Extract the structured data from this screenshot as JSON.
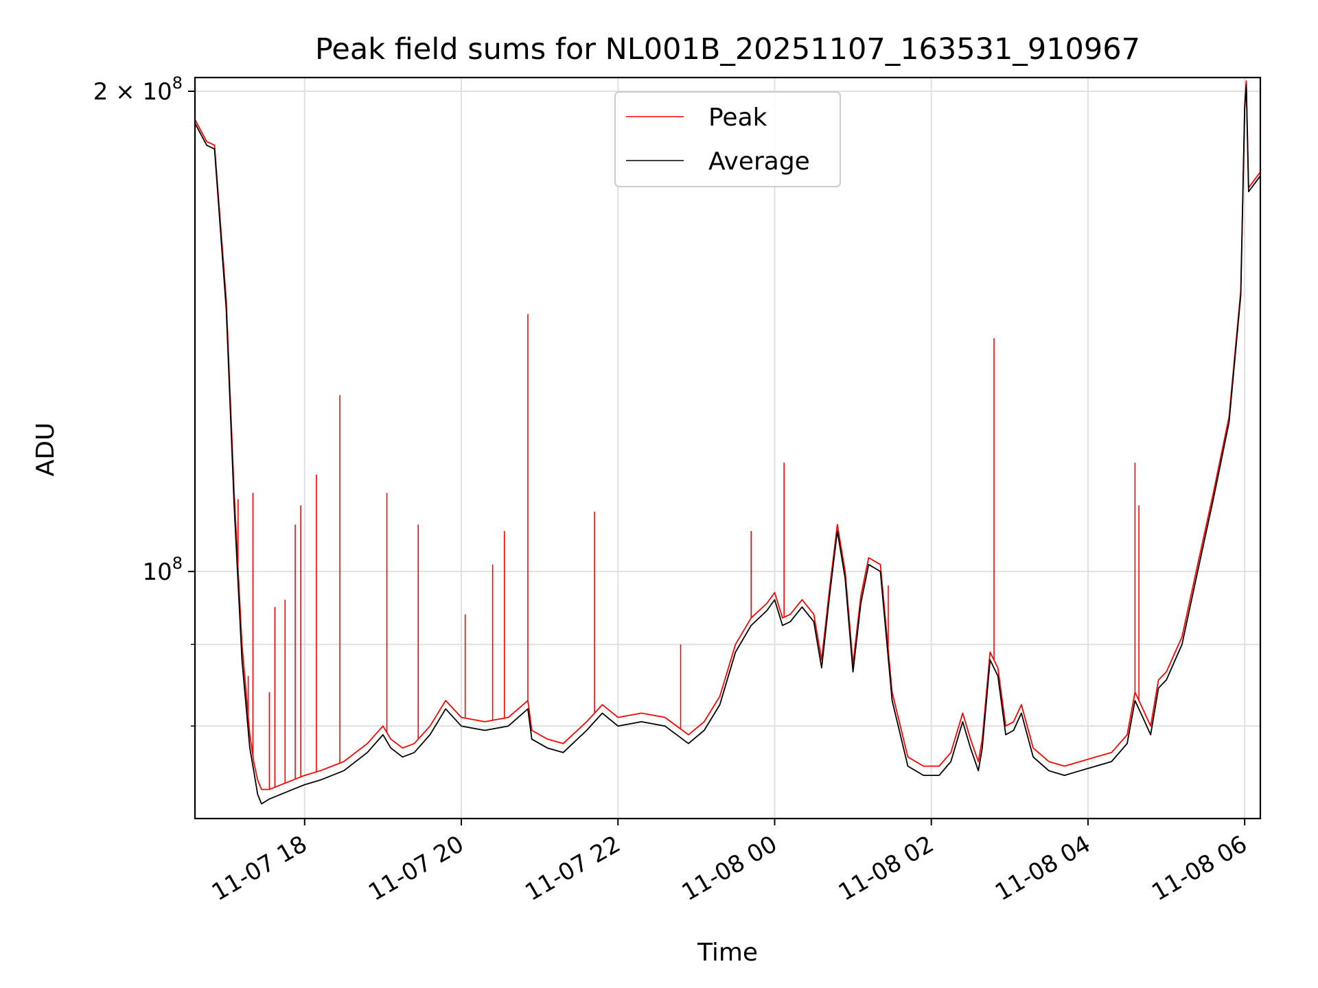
{
  "chart_data": {
    "type": "line",
    "title": "Peak field sums for NL001B_20251107_163531_910967",
    "xlabel": "Time",
    "ylabel": "ADU",
    "yscale": "log",
    "ylim": [
      70000000,
      204000000
    ],
    "xlim_hours": [
      16.6,
      30.2
    ],
    "grid": true,
    "legend_position": "upper center",
    "colors": {
      "Peak": "#ff0000",
      "Average": "#000000",
      "grid": "#e0e0e0"
    },
    "x_ticks": [
      {
        "hour": 18,
        "label": "11-07 18"
      },
      {
        "hour": 20,
        "label": "11-07 20"
      },
      {
        "hour": 22,
        "label": "11-07 22"
      },
      {
        "hour": 24,
        "label": "11-08 00"
      },
      {
        "hour": 26,
        "label": "11-08 02"
      },
      {
        "hour": 28,
        "label": "11-08 04"
      },
      {
        "hour": 30,
        "label": "11-08 06"
      }
    ],
    "y_ticks": [
      {
        "value": 100000000,
        "base": "10",
        "exp": "8"
      },
      {
        "value": 200000000,
        "base": "2 × 10",
        "exp": "8"
      }
    ],
    "y_minor_ticks": [
      80000000,
      90000000
    ],
    "series": [
      {
        "name": "Peak",
        "x_hours": [
          16.6,
          16.75,
          16.85,
          17.0,
          17.1,
          17.2,
          17.3,
          17.35,
          17.4,
          17.45,
          17.55,
          17.7,
          17.85,
          18.0,
          18.2,
          18.5,
          18.8,
          19.0,
          19.1,
          19.25,
          19.4,
          19.6,
          19.8,
          20.0,
          20.3,
          20.6,
          20.85,
          20.9,
          21.1,
          21.3,
          21.6,
          21.8,
          22.0,
          22.3,
          22.6,
          22.9,
          23.1,
          23.3,
          23.5,
          23.7,
          23.9,
          24.0,
          24.1,
          24.2,
          24.35,
          24.5,
          24.6,
          24.7,
          24.8,
          24.9,
          25.0,
          25.1,
          25.2,
          25.35,
          25.5,
          25.7,
          25.9,
          26.1,
          26.25,
          26.4,
          26.5,
          26.6,
          26.65,
          26.75,
          26.85,
          26.95,
          27.05,
          27.15,
          27.3,
          27.5,
          27.7,
          27.9,
          28.1,
          28.3,
          28.5,
          28.6,
          28.7,
          28.8,
          28.9,
          29.0,
          29.2,
          29.4,
          29.6,
          29.8,
          29.95,
          30.0,
          30.02,
          30.05,
          30.2
        ],
        "values": [
          192000000,
          186000000,
          185000000,
          148000000,
          112000000,
          90000000,
          79000000,
          76000000,
          74000000,
          73000000,
          73000000,
          73500000,
          74000000,
          74500000,
          75000000,
          76000000,
          78000000,
          80000000,
          78500000,
          77500000,
          78000000,
          80000000,
          83000000,
          81000000,
          80500000,
          81000000,
          83000000,
          79500000,
          78500000,
          78000000,
          80500000,
          82500000,
          81000000,
          81500000,
          81000000,
          79000000,
          80500000,
          83500000,
          90000000,
          93500000,
          95500000,
          97000000,
          93500000,
          94000000,
          96000000,
          94000000,
          88000000,
          97500000,
          107000000,
          100000000,
          87500000,
          96500000,
          102000000,
          101000000,
          84000000,
          76500000,
          75500000,
          75500000,
          77000000,
          81500000,
          78500000,
          76000000,
          78500000,
          89000000,
          87000000,
          80000000,
          80500000,
          82500000,
          77500000,
          76000000,
          75500000,
          76000000,
          76500000,
          77000000,
          79000000,
          84000000,
          82000000,
          80000000,
          85500000,
          86500000,
          91000000,
          101000000,
          112000000,
          125000000,
          150000000,
          196000000,
          203000000,
          174000000,
          178000000
        ]
      },
      {
        "name": "Average",
        "x_hours": [
          16.6,
          16.75,
          16.85,
          17.0,
          17.1,
          17.2,
          17.3,
          17.35,
          17.4,
          17.45,
          17.55,
          17.7,
          17.85,
          18.0,
          18.2,
          18.5,
          18.8,
          19.0,
          19.1,
          19.25,
          19.4,
          19.6,
          19.8,
          20.0,
          20.3,
          20.6,
          20.85,
          20.9,
          21.1,
          21.3,
          21.6,
          21.8,
          22.0,
          22.3,
          22.6,
          22.9,
          23.1,
          23.3,
          23.5,
          23.7,
          23.9,
          24.0,
          24.1,
          24.2,
          24.35,
          24.5,
          24.6,
          24.7,
          24.8,
          24.9,
          25.0,
          25.1,
          25.2,
          25.35,
          25.5,
          25.7,
          25.9,
          26.1,
          26.25,
          26.4,
          26.5,
          26.6,
          26.65,
          26.75,
          26.85,
          26.95,
          27.05,
          27.15,
          27.3,
          27.5,
          27.7,
          27.9,
          28.1,
          28.3,
          28.5,
          28.6,
          28.7,
          28.8,
          28.9,
          29.0,
          29.2,
          29.4,
          29.6,
          29.8,
          29.95,
          30.0,
          30.02,
          30.05,
          30.2
        ],
        "values": [
          191000000,
          185000000,
          184000000,
          146000000,
          110000000,
          88000000,
          77500000,
          75000000,
          72500000,
          71500000,
          72000000,
          72500000,
          73000000,
          73500000,
          74000000,
          75000000,
          77000000,
          79000000,
          77500000,
          76500000,
          77000000,
          79000000,
          82000000,
          80000000,
          79500000,
          80000000,
          82000000,
          78500000,
          77500000,
          77000000,
          79500000,
          81500000,
          80000000,
          80500000,
          80000000,
          78000000,
          79500000,
          82500000,
          89000000,
          92500000,
          94500000,
          96000000,
          92500000,
          93000000,
          95000000,
          93000000,
          87000000,
          96500000,
          106000000,
          99000000,
          86500000,
          95500000,
          101000000,
          100000000,
          83000000,
          75500000,
          74500000,
          74500000,
          76000000,
          80500000,
          77500000,
          75000000,
          77500000,
          88000000,
          86000000,
          79000000,
          79500000,
          81500000,
          76500000,
          75000000,
          74500000,
          75000000,
          75500000,
          76000000,
          78000000,
          83000000,
          81000000,
          79000000,
          84500000,
          85500000,
          90000000,
          100000000,
          111000000,
          124000000,
          149000000,
          195000000,
          202000000,
          173000000,
          177000000
        ]
      }
    ],
    "peak_spikes": [
      {
        "hour": 17.15,
        "value": 111000000
      },
      {
        "hour": 17.28,
        "value": 86000000
      },
      {
        "hour": 17.34,
        "value": 112000000
      },
      {
        "hour": 17.55,
        "value": 84000000
      },
      {
        "hour": 17.62,
        "value": 95000000
      },
      {
        "hour": 17.75,
        "value": 96000000
      },
      {
        "hour": 17.88,
        "value": 107000000
      },
      {
        "hour": 17.95,
        "value": 110000000
      },
      {
        "hour": 18.15,
        "value": 115000000
      },
      {
        "hour": 18.45,
        "value": 129000000
      },
      {
        "hour": 19.05,
        "value": 112000000
      },
      {
        "hour": 19.45,
        "value": 107000000
      },
      {
        "hour": 20.05,
        "value": 94000000
      },
      {
        "hour": 20.4,
        "value": 101000000
      },
      {
        "hour": 20.55,
        "value": 106000000
      },
      {
        "hour": 20.85,
        "value": 145000000
      },
      {
        "hour": 21.7,
        "value": 109000000
      },
      {
        "hour": 22.8,
        "value": 90000000
      },
      {
        "hour": 23.7,
        "value": 106000000
      },
      {
        "hour": 24.12,
        "value": 117000000
      },
      {
        "hour": 25.45,
        "value": 98000000
      },
      {
        "hour": 26.8,
        "value": 140000000
      },
      {
        "hour": 28.6,
        "value": 117000000
      },
      {
        "hour": 28.65,
        "value": 110000000
      }
    ],
    "legend": [
      "Peak",
      "Average"
    ]
  }
}
